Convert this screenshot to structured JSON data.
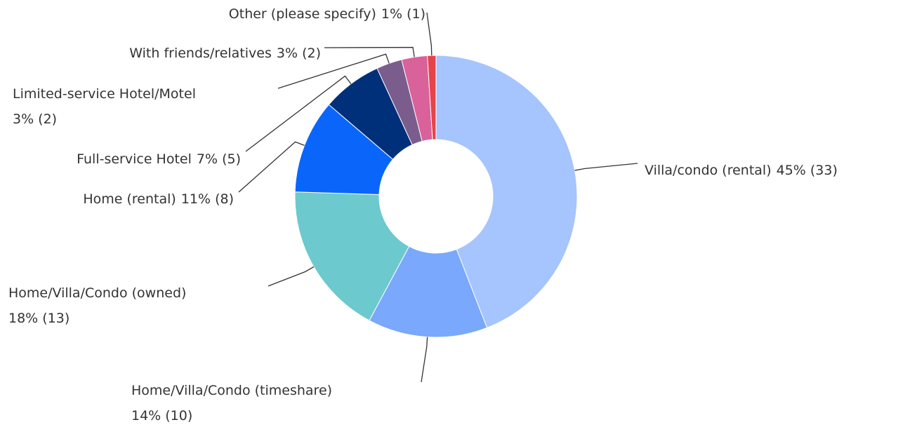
{
  "chart_data": {
    "type": "pie",
    "categories": [
      "Villa/condo (rental)",
      "Home/Villa/Condo (timeshare)",
      "Home/Villa/Condo (owned)",
      "Home (rental)",
      "Full-service Hotel",
      "Limited-service Hotel/Motel",
      "With friends/relatives",
      "Other (please specify)"
    ],
    "values": [
      45,
      14,
      18,
      11,
      7,
      3,
      3,
      1
    ],
    "value_labels": [
      "45% (33)",
      "14% (10)",
      "18% (13)",
      "11% (8)",
      "7% (5)",
      "3% (2)",
      "3% (2)",
      "1% (1)"
    ],
    "colors": [
      "#a6c4fd",
      "#79a8fd",
      "#6cc9cd",
      "#0a66fb",
      "#00307a",
      "#7a5d8d",
      "#d9629a",
      "#e5444b"
    ],
    "donut": true
  }
}
